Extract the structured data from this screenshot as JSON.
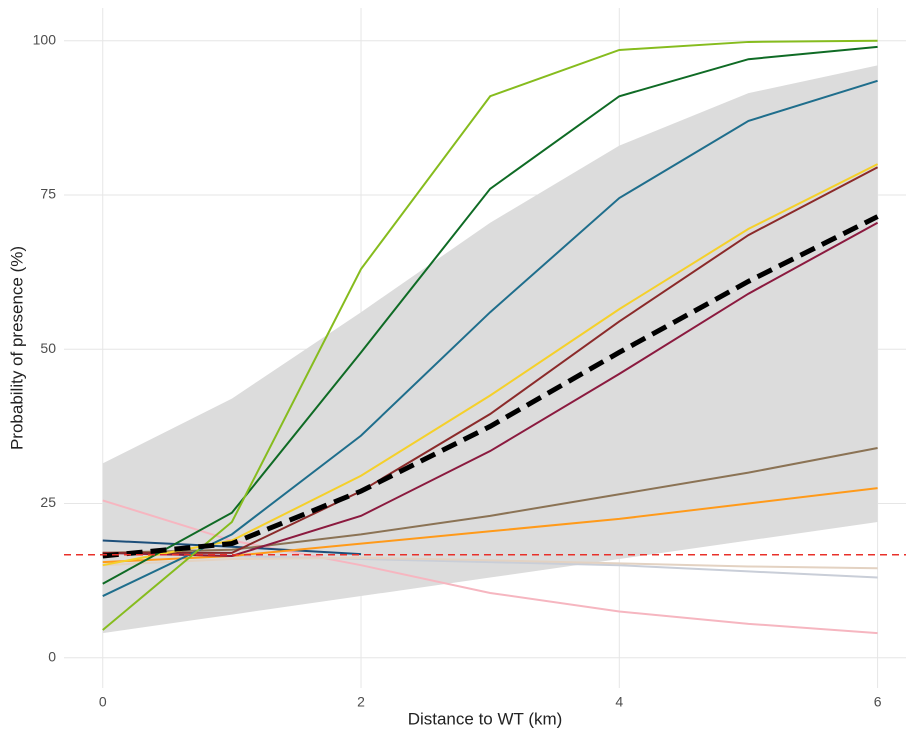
{
  "chart_data": {
    "type": "line",
    "x_label": "Distance to WT (km)",
    "y_label": "Probability of presence (%)",
    "x": [
      0,
      1,
      2,
      3,
      4,
      5,
      6
    ],
    "xlim": [
      -0.3,
      6.22
    ],
    "ylim": [
      -4.9,
      105.3
    ],
    "xticks": [
      0,
      2,
      4,
      6
    ],
    "yticks": [
      0,
      25,
      50,
      75,
      100
    ],
    "grid": true,
    "band": {
      "color": "#dcdcdc",
      "lower": [
        4,
        7,
        10,
        13,
        16,
        19,
        22
      ],
      "upper": [
        31.5,
        42,
        56,
        70.5,
        83,
        91.5,
        96
      ]
    },
    "reference_line": {
      "value": 16.7,
      "color": "#e8302a"
    },
    "series": [
      {
        "color": "#f6b6c0",
        "values": [
          25.5,
          19,
          15,
          10.5,
          7.5,
          5.5,
          4
        ]
      },
      {
        "color": "#c9ced8",
        "values": [
          17,
          16.5,
          16,
          15.5,
          15,
          14,
          13
        ]
      },
      {
        "color": "#e3d2c2",
        "values": [
          15,
          16,
          16.2,
          15.8,
          15.3,
          14.8,
          14.5
        ]
      },
      {
        "color": "#1d4f7a",
        "values": [
          19,
          18,
          16.8,
          null,
          null,
          null,
          null
        ]
      },
      {
        "color": "#ff9a1a",
        "values": [
          15.5,
          16.5,
          18.5,
          20.5,
          22.5,
          25,
          27.5
        ]
      },
      {
        "color": "#8b7355",
        "values": [
          17,
          17.5,
          20,
          23,
          26.5,
          30,
          34
        ]
      },
      {
        "color": "#8b1a3f",
        "values": [
          17,
          16.5,
          23,
          33.5,
          46,
          59,
          70.5
        ]
      },
      {
        "color": "#8b2a2a",
        "values": [
          17,
          17,
          27,
          39.5,
          54.5,
          68.5,
          79.5
        ]
      },
      {
        "color": "#f5d02a",
        "values": [
          15,
          19,
          29.5,
          42.5,
          56.5,
          69.5,
          80
        ]
      },
      {
        "color": "#1f6e8c",
        "values": [
          10,
          20,
          36,
          56,
          74.5,
          87,
          93.5
        ]
      },
      {
        "color": "#0f6b25",
        "values": [
          12,
          23.5,
          49.5,
          76,
          91,
          97,
          99
        ]
      },
      {
        "color": "#86bc1e",
        "values": [
          4.5,
          22,
          63,
          91,
          98.5,
          99.8,
          100
        ]
      },
      {
        "color": "#000000",
        "dashed": true,
        "values": [
          16.5,
          18.5,
          27,
          37.5,
          49.5,
          61,
          71.5
        ]
      }
    ]
  }
}
